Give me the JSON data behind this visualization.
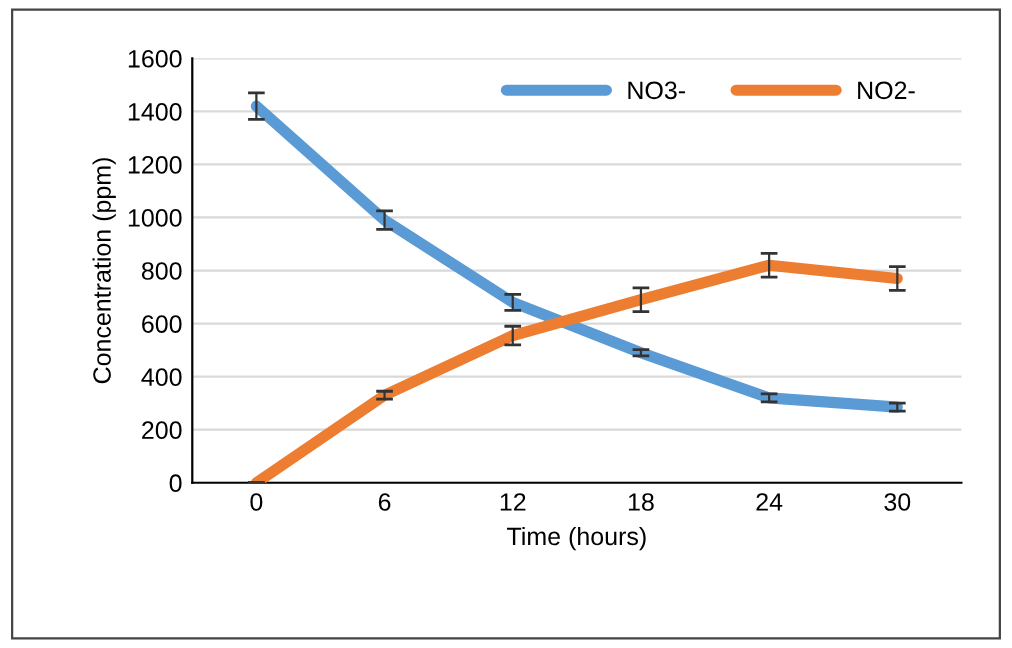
{
  "chart_data": {
    "type": "line",
    "xlabel": "Time (hours)",
    "ylabel": "Concentration (ppm)",
    "categories": [
      "0",
      "6",
      "12",
      "18",
      "24",
      "30"
    ],
    "series": [
      {
        "name": "NO3-",
        "color": "#5b9bd5",
        "values": [
          1420,
          990,
          680,
          490,
          320,
          285
        ],
        "errors": [
          50,
          35,
          30,
          12,
          15,
          15
        ]
      },
      {
        "name": "NO2-",
        "color": "#ed7d31",
        "values": [
          0,
          330,
          555,
          690,
          820,
          770
        ],
        "errors": [
          0,
          15,
          35,
          45,
          45,
          45
        ]
      }
    ],
    "ylim": [
      0,
      1600
    ],
    "yticks": [
      0,
      200,
      400,
      600,
      800,
      1000,
      1200,
      1400,
      1600
    ],
    "grid": "y",
    "legend": "top right",
    "marker": "none",
    "line_style": "solid"
  }
}
